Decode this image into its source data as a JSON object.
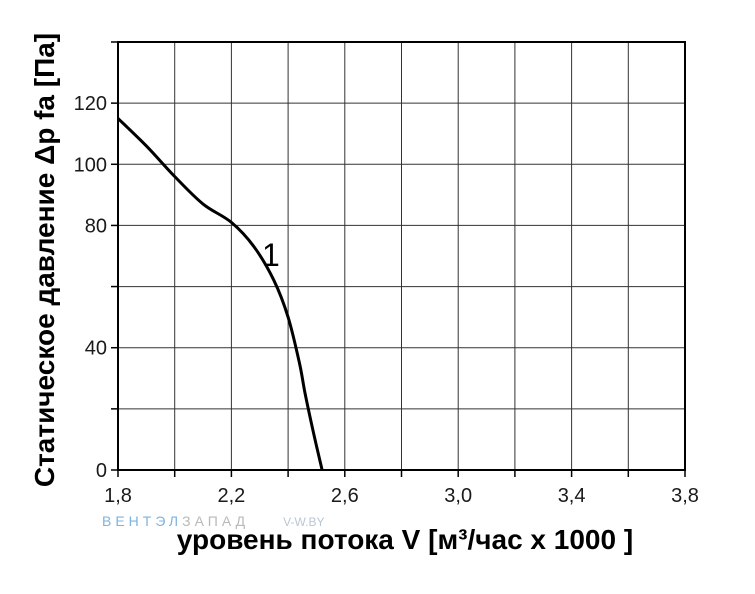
{
  "chart_data": {
    "type": "line",
    "xlabel": "уровень потока  V [м³/час x 1000 ]",
    "ylabel": "Статическое давление  Δp fa [Па]",
    "xlim": [
      1.8,
      3.8
    ],
    "ylim": [
      0,
      140
    ],
    "x_ticks": [
      "1,8",
      "2,2",
      "2,6",
      "3,0",
      "3,4",
      "3,8"
    ],
    "y_ticks": [
      "0",
      "40",
      "80",
      "100",
      "120"
    ],
    "grid": true,
    "series": [
      {
        "name": "1",
        "x": [
          1.8,
          1.9,
          2.0,
          2.1,
          2.2,
          2.28,
          2.35,
          2.4,
          2.44,
          2.46,
          2.49,
          2.52
        ],
        "y": [
          115,
          106,
          96,
          87,
          81,
          73,
          62,
          50,
          35,
          25,
          12,
          0
        ]
      }
    ],
    "watermark": {
      "part1": "ВЕНТЭЛ",
      "part2": "ЗАПАД",
      "part3": "V-W.BY"
    }
  }
}
